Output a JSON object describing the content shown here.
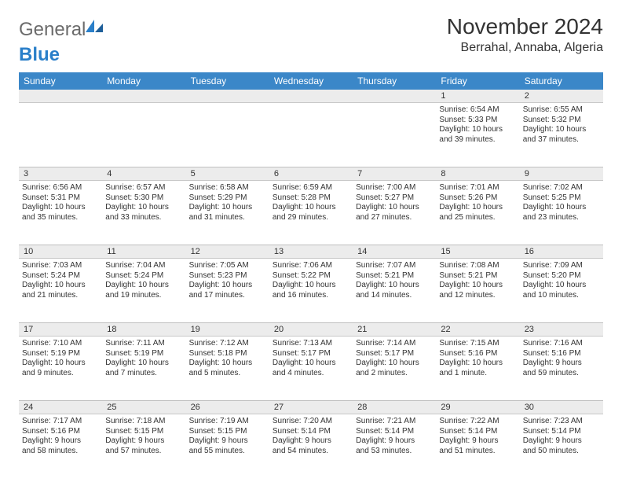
{
  "brand": {
    "part1": "General",
    "part2": "Blue"
  },
  "title": "November 2024",
  "location": "Berrahal, Annaba, Algeria",
  "colors": {
    "header_bg": "#3b87c8",
    "header_fg": "#ffffff",
    "daynum_bg": "#ececec",
    "border": "#c8c8c8",
    "text": "#333333",
    "logo_gray": "#6b6b6b",
    "logo_blue": "#2a7fc9"
  },
  "weekdays": [
    "Sunday",
    "Monday",
    "Tuesday",
    "Wednesday",
    "Thursday",
    "Friday",
    "Saturday"
  ],
  "weeks": [
    [
      null,
      null,
      null,
      null,
      null,
      {
        "d": "1",
        "sr": "Sunrise: 6:54 AM",
        "ss": "Sunset: 5:33 PM",
        "dl1": "Daylight: 10 hours",
        "dl2": "and 39 minutes."
      },
      {
        "d": "2",
        "sr": "Sunrise: 6:55 AM",
        "ss": "Sunset: 5:32 PM",
        "dl1": "Daylight: 10 hours",
        "dl2": "and 37 minutes."
      }
    ],
    [
      {
        "d": "3",
        "sr": "Sunrise: 6:56 AM",
        "ss": "Sunset: 5:31 PM",
        "dl1": "Daylight: 10 hours",
        "dl2": "and 35 minutes."
      },
      {
        "d": "4",
        "sr": "Sunrise: 6:57 AM",
        "ss": "Sunset: 5:30 PM",
        "dl1": "Daylight: 10 hours",
        "dl2": "and 33 minutes."
      },
      {
        "d": "5",
        "sr": "Sunrise: 6:58 AM",
        "ss": "Sunset: 5:29 PM",
        "dl1": "Daylight: 10 hours",
        "dl2": "and 31 minutes."
      },
      {
        "d": "6",
        "sr": "Sunrise: 6:59 AM",
        "ss": "Sunset: 5:28 PM",
        "dl1": "Daylight: 10 hours",
        "dl2": "and 29 minutes."
      },
      {
        "d": "7",
        "sr": "Sunrise: 7:00 AM",
        "ss": "Sunset: 5:27 PM",
        "dl1": "Daylight: 10 hours",
        "dl2": "and 27 minutes."
      },
      {
        "d": "8",
        "sr": "Sunrise: 7:01 AM",
        "ss": "Sunset: 5:26 PM",
        "dl1": "Daylight: 10 hours",
        "dl2": "and 25 minutes."
      },
      {
        "d": "9",
        "sr": "Sunrise: 7:02 AM",
        "ss": "Sunset: 5:25 PM",
        "dl1": "Daylight: 10 hours",
        "dl2": "and 23 minutes."
      }
    ],
    [
      {
        "d": "10",
        "sr": "Sunrise: 7:03 AM",
        "ss": "Sunset: 5:24 PM",
        "dl1": "Daylight: 10 hours",
        "dl2": "and 21 minutes."
      },
      {
        "d": "11",
        "sr": "Sunrise: 7:04 AM",
        "ss": "Sunset: 5:24 PM",
        "dl1": "Daylight: 10 hours",
        "dl2": "and 19 minutes."
      },
      {
        "d": "12",
        "sr": "Sunrise: 7:05 AM",
        "ss": "Sunset: 5:23 PM",
        "dl1": "Daylight: 10 hours",
        "dl2": "and 17 minutes."
      },
      {
        "d": "13",
        "sr": "Sunrise: 7:06 AM",
        "ss": "Sunset: 5:22 PM",
        "dl1": "Daylight: 10 hours",
        "dl2": "and 16 minutes."
      },
      {
        "d": "14",
        "sr": "Sunrise: 7:07 AM",
        "ss": "Sunset: 5:21 PM",
        "dl1": "Daylight: 10 hours",
        "dl2": "and 14 minutes."
      },
      {
        "d": "15",
        "sr": "Sunrise: 7:08 AM",
        "ss": "Sunset: 5:21 PM",
        "dl1": "Daylight: 10 hours",
        "dl2": "and 12 minutes."
      },
      {
        "d": "16",
        "sr": "Sunrise: 7:09 AM",
        "ss": "Sunset: 5:20 PM",
        "dl1": "Daylight: 10 hours",
        "dl2": "and 10 minutes."
      }
    ],
    [
      {
        "d": "17",
        "sr": "Sunrise: 7:10 AM",
        "ss": "Sunset: 5:19 PM",
        "dl1": "Daylight: 10 hours",
        "dl2": "and 9 minutes."
      },
      {
        "d": "18",
        "sr": "Sunrise: 7:11 AM",
        "ss": "Sunset: 5:19 PM",
        "dl1": "Daylight: 10 hours",
        "dl2": "and 7 minutes."
      },
      {
        "d": "19",
        "sr": "Sunrise: 7:12 AM",
        "ss": "Sunset: 5:18 PM",
        "dl1": "Daylight: 10 hours",
        "dl2": "and 5 minutes."
      },
      {
        "d": "20",
        "sr": "Sunrise: 7:13 AM",
        "ss": "Sunset: 5:17 PM",
        "dl1": "Daylight: 10 hours",
        "dl2": "and 4 minutes."
      },
      {
        "d": "21",
        "sr": "Sunrise: 7:14 AM",
        "ss": "Sunset: 5:17 PM",
        "dl1": "Daylight: 10 hours",
        "dl2": "and 2 minutes."
      },
      {
        "d": "22",
        "sr": "Sunrise: 7:15 AM",
        "ss": "Sunset: 5:16 PM",
        "dl1": "Daylight: 10 hours",
        "dl2": "and 1 minute."
      },
      {
        "d": "23",
        "sr": "Sunrise: 7:16 AM",
        "ss": "Sunset: 5:16 PM",
        "dl1": "Daylight: 9 hours",
        "dl2": "and 59 minutes."
      }
    ],
    [
      {
        "d": "24",
        "sr": "Sunrise: 7:17 AM",
        "ss": "Sunset: 5:16 PM",
        "dl1": "Daylight: 9 hours",
        "dl2": "and 58 minutes."
      },
      {
        "d": "25",
        "sr": "Sunrise: 7:18 AM",
        "ss": "Sunset: 5:15 PM",
        "dl1": "Daylight: 9 hours",
        "dl2": "and 57 minutes."
      },
      {
        "d": "26",
        "sr": "Sunrise: 7:19 AM",
        "ss": "Sunset: 5:15 PM",
        "dl1": "Daylight: 9 hours",
        "dl2": "and 55 minutes."
      },
      {
        "d": "27",
        "sr": "Sunrise: 7:20 AM",
        "ss": "Sunset: 5:14 PM",
        "dl1": "Daylight: 9 hours",
        "dl2": "and 54 minutes."
      },
      {
        "d": "28",
        "sr": "Sunrise: 7:21 AM",
        "ss": "Sunset: 5:14 PM",
        "dl1": "Daylight: 9 hours",
        "dl2": "and 53 minutes."
      },
      {
        "d": "29",
        "sr": "Sunrise: 7:22 AM",
        "ss": "Sunset: 5:14 PM",
        "dl1": "Daylight: 9 hours",
        "dl2": "and 51 minutes."
      },
      {
        "d": "30",
        "sr": "Sunrise: 7:23 AM",
        "ss": "Sunset: 5:14 PM",
        "dl1": "Daylight: 9 hours",
        "dl2": "and 50 minutes."
      }
    ]
  ]
}
